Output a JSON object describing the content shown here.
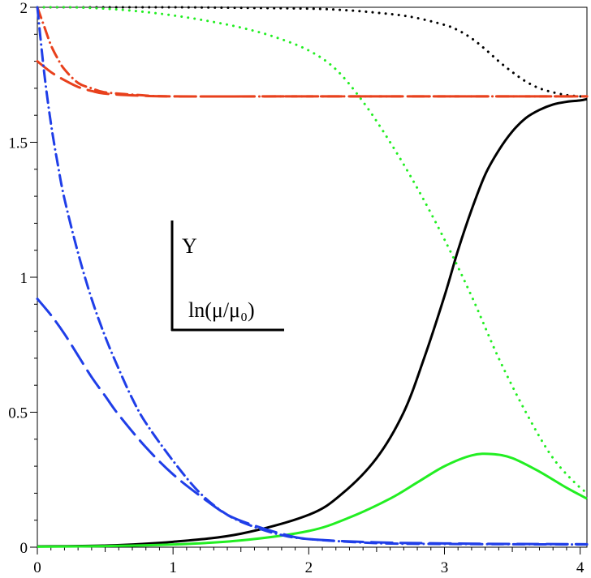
{
  "chart_data": {
    "type": "line",
    "xlim": [
      0,
      4.05
    ],
    "ylim": [
      0,
      2
    ],
    "x_ticks": [
      0,
      1,
      2,
      3,
      4
    ],
    "x_tick_labels": [
      "0",
      "1",
      "2",
      "3",
      "4"
    ],
    "y_ticks": [
      0,
      0.5,
      1,
      1.5,
      2
    ],
    "y_tick_labels": [
      "0",
      "0.5",
      "1",
      "1.5",
      "2"
    ],
    "inset_ylabel": "Y",
    "inset_xlabel": "ln(μ/μ₀)",
    "grid": false,
    "series": [
      {
        "color": "#000000",
        "style": "dotted",
        "x": [
          0,
          0.5,
          1,
          1.5,
          2,
          2.25,
          2.5,
          2.75,
          3,
          3.1,
          3.2,
          3.3,
          3.4,
          3.5,
          3.6,
          3.7,
          3.8,
          3.9,
          4.0,
          4.05
        ],
        "values": [
          2.0,
          2.0,
          2.0,
          1.998,
          1.995,
          1.99,
          1.98,
          1.965,
          1.935,
          1.915,
          1.885,
          1.845,
          1.8,
          1.76,
          1.725,
          1.7,
          1.685,
          1.675,
          1.67,
          1.67
        ]
      },
      {
        "color": "#000000",
        "style": "solid",
        "x": [
          0,
          0.5,
          1,
          1.5,
          2,
          2.25,
          2.5,
          2.7,
          2.85,
          3.0,
          3.1,
          3.2,
          3.3,
          3.4,
          3.5,
          3.6,
          3.7,
          3.8,
          3.9,
          4.0,
          4.05
        ],
        "values": [
          0.003,
          0.006,
          0.02,
          0.05,
          0.12,
          0.2,
          0.33,
          0.5,
          0.7,
          0.93,
          1.1,
          1.25,
          1.38,
          1.47,
          1.54,
          1.59,
          1.62,
          1.64,
          1.65,
          1.655,
          1.66
        ]
      },
      {
        "color": "#22ee22",
        "style": "dotted",
        "x": [
          0,
          0.25,
          0.5,
          0.75,
          1.0,
          1.25,
          1.5,
          1.75,
          2.0,
          2.2,
          2.4,
          2.6,
          2.8,
          3.0,
          3.2,
          3.4,
          3.6,
          3.8,
          4.0,
          4.05
        ],
        "values": [
          2.0,
          2.0,
          1.995,
          1.985,
          1.97,
          1.95,
          1.925,
          1.89,
          1.84,
          1.77,
          1.65,
          1.5,
          1.33,
          1.14,
          0.93,
          0.7,
          0.5,
          0.33,
          0.22,
          0.21
        ]
      },
      {
        "color": "#22ee22",
        "style": "solid",
        "x": [
          0,
          0.5,
          1.0,
          1.5,
          2.0,
          2.3,
          2.6,
          2.8,
          3.0,
          3.2,
          3.35,
          3.5,
          3.7,
          3.9,
          4.05
        ],
        "values": [
          0.002,
          0.004,
          0.01,
          0.025,
          0.06,
          0.11,
          0.18,
          0.24,
          0.3,
          0.34,
          0.345,
          0.33,
          0.28,
          0.22,
          0.18
        ]
      },
      {
        "color": "#e8401c",
        "style": "dashdot",
        "x": [
          0,
          0.05,
          0.1,
          0.15,
          0.2,
          0.3,
          0.4,
          0.5,
          0.75,
          1.0,
          2.0,
          3.0,
          4.05
        ],
        "values": [
          2.0,
          1.93,
          1.86,
          1.81,
          1.77,
          1.72,
          1.7,
          1.685,
          1.675,
          1.67,
          1.67,
          1.67,
          1.67
        ]
      },
      {
        "color": "#e8401c",
        "style": "longdash",
        "x": [
          0,
          0.1,
          0.2,
          0.3,
          0.4,
          0.5,
          0.75,
          1.0,
          2.0,
          3.0,
          4.05
        ],
        "values": [
          1.8,
          1.76,
          1.73,
          1.705,
          1.69,
          1.68,
          1.673,
          1.67,
          1.67,
          1.67,
          1.67
        ]
      },
      {
        "color": "#1f3ee8",
        "style": "dashdot",
        "x": [
          0,
          0.05,
          0.1,
          0.15,
          0.2,
          0.3,
          0.4,
          0.5,
          0.6,
          0.7,
          0.8,
          1.0,
          1.2,
          1.4,
          1.6,
          1.8,
          2.0,
          2.5,
          3.0,
          3.5,
          4.05
        ],
        "values": [
          2.0,
          1.76,
          1.57,
          1.42,
          1.29,
          1.09,
          0.92,
          0.78,
          0.66,
          0.55,
          0.46,
          0.32,
          0.2,
          0.12,
          0.075,
          0.045,
          0.03,
          0.015,
          0.012,
          0.011,
          0.01
        ]
      },
      {
        "color": "#1f3ee8",
        "style": "longdash",
        "x": [
          0,
          0.1,
          0.2,
          0.3,
          0.4,
          0.5,
          0.6,
          0.8,
          1.0,
          1.2,
          1.4,
          1.6,
          1.8,
          2.0,
          2.5,
          3.0,
          3.5,
          4.05
        ],
        "values": [
          0.92,
          0.86,
          0.79,
          0.71,
          0.63,
          0.56,
          0.49,
          0.37,
          0.27,
          0.19,
          0.12,
          0.08,
          0.05,
          0.03,
          0.018,
          0.014,
          0.012,
          0.011
        ]
      }
    ]
  }
}
